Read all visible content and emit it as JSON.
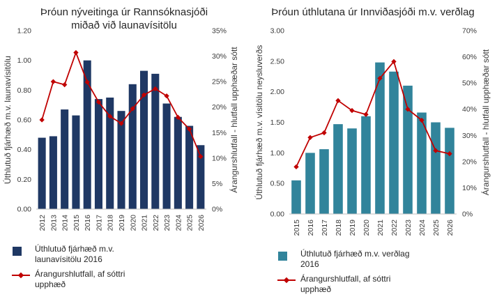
{
  "chart_data": [
    {
      "type": "bar+line",
      "title_lines": [
        "Þróun nýveitinga úr Rannsóknasjóði",
        "miðað við launavísitölu"
      ],
      "categories": [
        "2012",
        "2013",
        "2014",
        "2015",
        "2016",
        "2017",
        "2018",
        "2019",
        "2020",
        "2021",
        "2022",
        "2023",
        "2024",
        "2025",
        "2026"
      ],
      "bar_series": {
        "name": "Úthlutuð fjárhæð m.v. launavísitölu 2016",
        "legend_lines": [
          "Úthlutuð fjárhæð m.v.",
          "launavísitölu 2016"
        ],
        "color": "#1f3864",
        "values": [
          0.48,
          0.49,
          0.67,
          0.63,
          1.0,
          0.74,
          0.75,
          0.66,
          0.84,
          0.93,
          0.91,
          0.71,
          0.62,
          0.56,
          0.43
        ]
      },
      "line_series": {
        "name": "Árangurshlutfall, af sóttri upphæð",
        "legend_lines": [
          "Árangurshlutfall,  af sóttri",
          "upphæð"
        ],
        "color": "#c00000",
        "values": [
          17.5,
          25.0,
          24.4,
          30.7,
          24.9,
          21.0,
          18.2,
          16.8,
          19.7,
          22.4,
          23.6,
          22.2,
          18.0,
          15.7,
          10.3
        ]
      },
      "ylabel": "Úthlutuð fjárhæð m.v. launavísitölu",
      "y2label": "Árangurshlutfall - hlutfall upphæðar sótt",
      "ylim": [
        0,
        1.2
      ],
      "yticks": [
        "0.00",
        "0.20",
        "0.40",
        "0.60",
        "0.80",
        "1.00",
        "1.20"
      ],
      "y2lim": [
        0,
        35
      ],
      "y2ticks": [
        "0%",
        "5%",
        "10%",
        "15%",
        "20%",
        "25%",
        "30%",
        "35%"
      ]
    },
    {
      "type": "bar+line",
      "title_lines": [
        "Þróun úthlutana úr Innviðasjóði m.v. verðlag"
      ],
      "categories": [
        "2015",
        "2016",
        "2017",
        "2018",
        "2019",
        "2020",
        "2021",
        "2022",
        "2023",
        "2024",
        "2025",
        "2026"
      ],
      "bar_series": {
        "name": "Úthlutuð fjárhæð m.v. verðlag 2016",
        "legend_lines": [
          "Úthlutuð fjárhæð m.v. verðlag",
          "2016"
        ],
        "color": "#31849b",
        "values": [
          0.55,
          1.0,
          1.06,
          1.47,
          1.4,
          1.6,
          2.48,
          2.33,
          2.1,
          1.66,
          1.5,
          1.41
        ]
      },
      "line_series": {
        "name": "Árangurshlutfall, af sóttri upphæð",
        "legend_lines": [
          "Árangurshlutfall,  af sóttri",
          "upphæð"
        ],
        "color": "#c00000",
        "values": [
          18.0,
          29.2,
          31.0,
          43.3,
          39.5,
          38.0,
          51.8,
          58.2,
          40.0,
          35.8,
          24.2,
          23.0
        ]
      },
      "ylabel": "Úthlutuð fjárhæð m.v. vísitölu neysluverðs",
      "y2label": "Árangurshlutfall - hlutfall upphæðar sótt",
      "ylim": [
        0,
        3.0
      ],
      "yticks": [
        "0.00",
        "0.50",
        "1.00",
        "1.50",
        "2.00",
        "2.50",
        "3.00"
      ],
      "y2lim": [
        0,
        70
      ],
      "y2ticks": [
        "0%",
        "10%",
        "20%",
        "30%",
        "40%",
        "50%",
        "60%",
        "70%"
      ]
    }
  ]
}
